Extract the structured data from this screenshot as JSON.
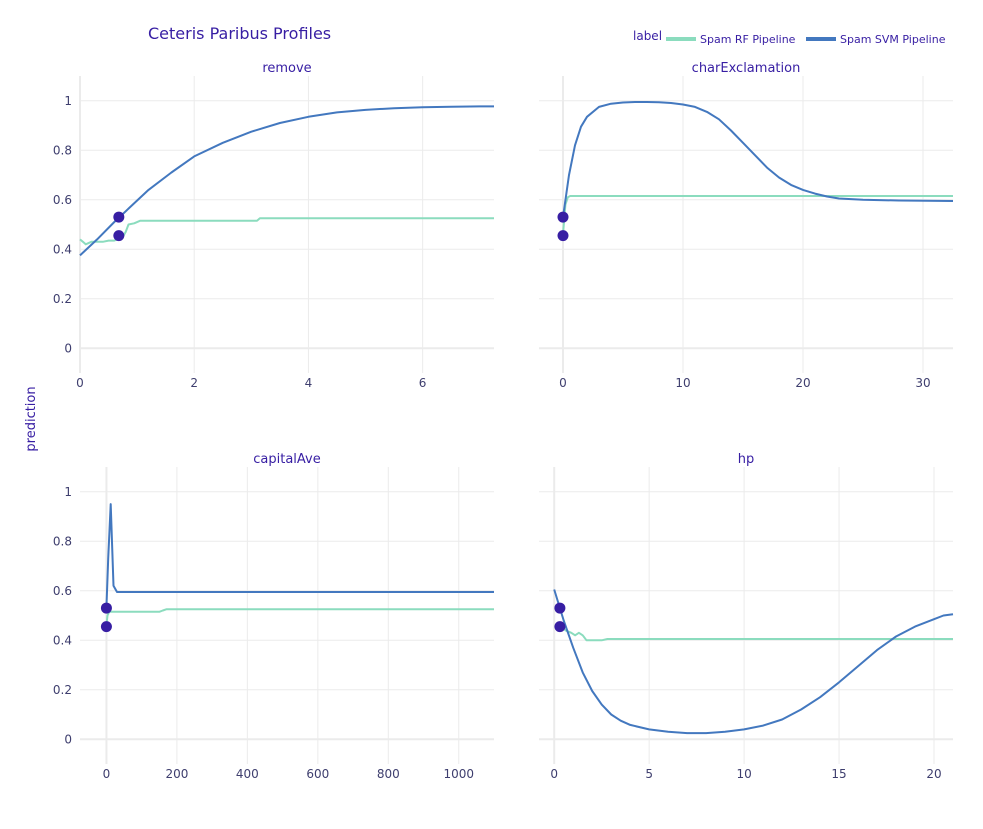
{
  "title": "Ceteris Paribus Profiles",
  "ylabel": "prediction",
  "legend": {
    "title": "label",
    "placement": "top-right",
    "entries": [
      {
        "name": "Spam RF Pipeline",
        "color": "#8bdcbe"
      },
      {
        "name": "Spam SVM Pipeline",
        "color": "#4378bf"
      }
    ]
  },
  "colors": {
    "rf": "#8bdcbe",
    "svm": "#4378bf",
    "observation": "#371ea3",
    "grid": "#ebebeb",
    "text": "#371ea3"
  },
  "chart_data": [
    {
      "type": "line",
      "title": "remove",
      "xlim": [
        0,
        7.25
      ],
      "ylim": [
        -0.1,
        1.1
      ],
      "xticks": [
        0,
        2,
        4,
        6
      ],
      "yticks": [
        0,
        0.2,
        0.4,
        0.6,
        0.8,
        1
      ],
      "ytick_labels": [
        "0",
        "0.2",
        "0.4",
        "0.6",
        "0.8",
        "1"
      ],
      "grid": true,
      "series": [
        {
          "name": "Spam RF Pipeline",
          "x": [
            0,
            0.05,
            0.1,
            0.2,
            0.3,
            0.4,
            0.5,
            0.6,
            0.65,
            0.75,
            0.8,
            0.85,
            0.95,
            1.05,
            1.5,
            2,
            2.5,
            3.1,
            3.15,
            3.5,
            4,
            5,
            6,
            7.25
          ],
          "y": [
            0.44,
            0.43,
            0.42,
            0.43,
            0.43,
            0.43,
            0.435,
            0.435,
            0.44,
            0.45,
            0.47,
            0.5,
            0.505,
            0.515,
            0.515,
            0.515,
            0.515,
            0.515,
            0.525,
            0.525,
            0.525,
            0.525,
            0.525,
            0.525
          ]
        },
        {
          "name": "Spam SVM Pipeline",
          "x": [
            0,
            0.3,
            0.6,
            0.9,
            1.2,
            1.6,
            2,
            2.5,
            3,
            3.5,
            4,
            4.5,
            5,
            5.5,
            6,
            6.5,
            7,
            7.25
          ],
          "y": [
            0.375,
            0.44,
            0.51,
            0.575,
            0.64,
            0.71,
            0.775,
            0.83,
            0.875,
            0.91,
            0.935,
            0.953,
            0.963,
            0.97,
            0.974,
            0.976,
            0.977,
            0.977
          ]
        }
      ],
      "observations": [
        {
          "x": 0.68,
          "y": 0.53
        },
        {
          "x": 0.68,
          "y": 0.455
        }
      ]
    },
    {
      "type": "line",
      "title": "charExclamation",
      "xlim": [
        -2,
        32.5
      ],
      "ylim": [
        -0.1,
        1.1
      ],
      "xticks": [
        0,
        10,
        20,
        30
      ],
      "yticks": [
        0,
        0.2,
        0.4,
        0.6,
        0.8,
        1
      ],
      "ytick_labels": [],
      "grid": true,
      "series": [
        {
          "name": "Spam RF Pipeline",
          "x": [
            0,
            0.2,
            0.4,
            0.6,
            1,
            5,
            10,
            20,
            32.5
          ],
          "y": [
            0.46,
            0.58,
            0.61,
            0.615,
            0.615,
            0.615,
            0.615,
            0.615,
            0.615
          ]
        },
        {
          "name": "Spam SVM Pipeline",
          "x": [
            0,
            0.5,
            1,
            1.5,
            2,
            3,
            4,
            5,
            6,
            7,
            8,
            9,
            10,
            11,
            12,
            13,
            14,
            15,
            16,
            17,
            18,
            19,
            20,
            21,
            22,
            23,
            25,
            28,
            32.5
          ],
          "y": [
            0.53,
            0.7,
            0.82,
            0.895,
            0.935,
            0.975,
            0.988,
            0.993,
            0.995,
            0.995,
            0.994,
            0.991,
            0.985,
            0.975,
            0.955,
            0.925,
            0.88,
            0.83,
            0.78,
            0.73,
            0.69,
            0.66,
            0.64,
            0.625,
            0.613,
            0.605,
            0.6,
            0.597,
            0.595
          ]
        }
      ],
      "observations": [
        {
          "x": 0,
          "y": 0.53
        },
        {
          "x": 0,
          "y": 0.455
        }
      ]
    },
    {
      "type": "line",
      "title": "capitalAve",
      "xlim": [
        -75,
        1100
      ],
      "ylim": [
        -0.1,
        1.1
      ],
      "xticks": [
        0,
        200,
        400,
        600,
        800,
        1000
      ],
      "yticks": [
        0,
        0.2,
        0.4,
        0.6,
        0.8,
        1
      ],
      "ytick_labels": [
        "0",
        "0.2",
        "0.4",
        "0.6",
        "0.8",
        "1"
      ],
      "grid": true,
      "series": [
        {
          "name": "Spam RF Pipeline",
          "x": [
            0,
            3,
            8,
            15,
            50,
            100,
            150,
            160,
            170,
            500,
            1100
          ],
          "y": [
            0.46,
            0.5,
            0.515,
            0.515,
            0.515,
            0.515,
            0.515,
            0.52,
            0.525,
            0.525,
            0.525
          ]
        },
        {
          "name": "Spam SVM Pipeline",
          "x": [
            0,
            5,
            12,
            20,
            30,
            60,
            200,
            500,
            1100
          ],
          "y": [
            0.53,
            0.73,
            0.95,
            0.62,
            0.595,
            0.595,
            0.595,
            0.595,
            0.595
          ]
        }
      ],
      "observations": [
        {
          "x": 0,
          "y": 0.53
        },
        {
          "x": 0,
          "y": 0.455
        }
      ]
    },
    {
      "type": "line",
      "title": "hp",
      "xlim": [
        -0.8,
        21
      ],
      "ylim": [
        -0.1,
        1.1
      ],
      "xticks": [
        0,
        5,
        10,
        15,
        20
      ],
      "yticks": [
        0,
        0.2,
        0.4,
        0.6,
        0.8,
        1
      ],
      "ytick_labels": [],
      "grid": true,
      "series": [
        {
          "name": "Spam RF Pipeline",
          "x": [
            0.3,
            0.6,
            0.9,
            1.1,
            1.3,
            1.5,
            1.7,
            2,
            2.5,
            2.8,
            3,
            5,
            10,
            15,
            21
          ],
          "y": [
            0.46,
            0.44,
            0.43,
            0.42,
            0.43,
            0.42,
            0.4,
            0.4,
            0.4,
            0.405,
            0.405,
            0.405,
            0.405,
            0.405,
            0.405
          ]
        },
        {
          "name": "Spam SVM Pipeline",
          "x": [
            0,
            0.5,
            1,
            1.5,
            2,
            2.5,
            3,
            3.5,
            4,
            5,
            6,
            7,
            8,
            9,
            10,
            11,
            12,
            13,
            14,
            15,
            16,
            17,
            18,
            19,
            20,
            20.5,
            21
          ],
          "y": [
            0.605,
            0.48,
            0.37,
            0.27,
            0.195,
            0.14,
            0.1,
            0.075,
            0.058,
            0.04,
            0.03,
            0.025,
            0.025,
            0.03,
            0.04,
            0.055,
            0.08,
            0.12,
            0.17,
            0.23,
            0.295,
            0.36,
            0.415,
            0.455,
            0.485,
            0.5,
            0.505
          ]
        }
      ],
      "observations": [
        {
          "x": 0.3,
          "y": 0.53
        },
        {
          "x": 0.3,
          "y": 0.455
        }
      ]
    }
  ]
}
